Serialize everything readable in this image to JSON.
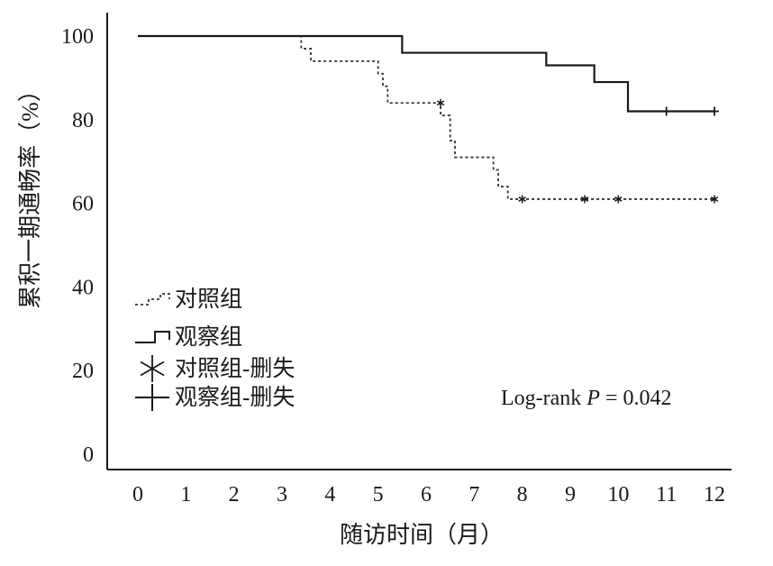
{
  "chart_data": {
    "type": "line",
    "xlabel": "随访时间（月）",
    "ylabel": "累积一期通畅率（%）",
    "xlim": [
      0,
      12
    ],
    "ylim": [
      0,
      100
    ],
    "x_ticks": [
      "0",
      "1",
      "2",
      "3",
      "4",
      "5",
      "6",
      "7",
      "8",
      "9",
      "10",
      "11",
      "12"
    ],
    "y_ticks": [
      "0",
      "20",
      "40",
      "60",
      "80",
      "100"
    ],
    "grid": false,
    "legend_position": "bottom-left",
    "annotation": {
      "prefix": "Log-rank ",
      "italic": "P",
      "suffix": " = 0.042"
    },
    "series": [
      {
        "name": "对照组",
        "style": "dashed-step",
        "color": "#333333",
        "x": [
          0,
          3.4,
          3.6,
          5.0,
          5.1,
          5.2,
          6.3,
          6.5,
          6.6,
          7.4,
          7.5,
          7.7,
          12
        ],
        "y": [
          100,
          97,
          94,
          91,
          88,
          84,
          81,
          75,
          71,
          68,
          64,
          61,
          61
        ],
        "censor_x": [
          6.3,
          8.0,
          9.3,
          10.0,
          12.0
        ],
        "censor_y": [
          84,
          61,
          61,
          61,
          61
        ]
      },
      {
        "name": "观察组",
        "style": "solid-step",
        "color": "#1a1a1a",
        "x": [
          0,
          5.5,
          8.5,
          9.5,
          10.2,
          12
        ],
        "y": [
          100,
          96,
          93,
          89,
          82,
          82
        ],
        "censor_x": [
          11.0,
          12.0
        ],
        "censor_y": [
          82,
          82
        ]
      }
    ],
    "legend": [
      {
        "label": "对照组",
        "symbol": "dashed-step"
      },
      {
        "label": "观察组",
        "symbol": "solid-step"
      },
      {
        "label": "对照组-删失",
        "symbol": "star"
      },
      {
        "label": "观察组-删失",
        "symbol": "plus"
      }
    ]
  }
}
